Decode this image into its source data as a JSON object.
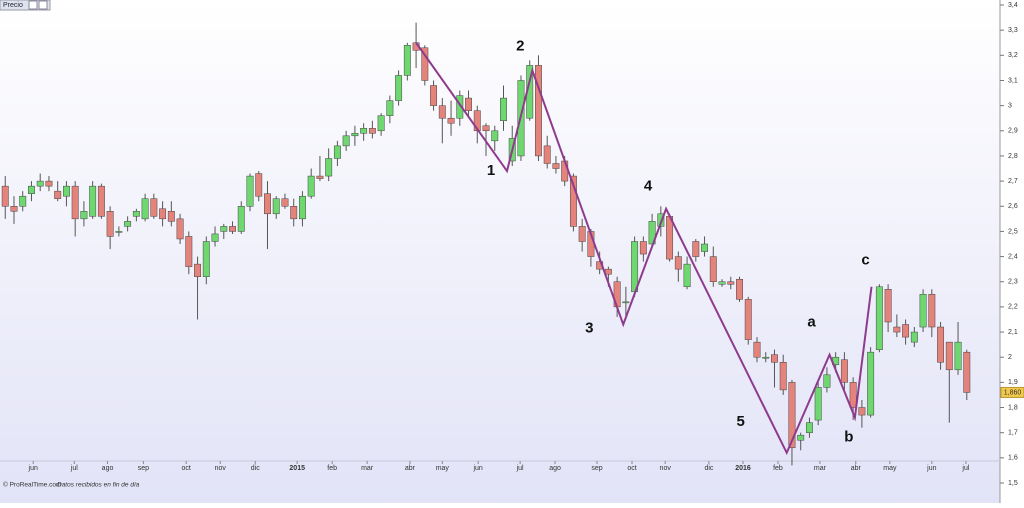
{
  "chart_data": {
    "type": "candlestick",
    "tag": "Precio",
    "footer": {
      "source": "© ProRealTime.com",
      "note": "Datos recibidos en fin de día"
    },
    "colors": {
      "up": "#6fd76f",
      "down": "#e4837b",
      "wick": "#555555",
      "wave": "#8e3b8e"
    },
    "open": [
      2.68,
      2.6,
      2.6,
      2.65,
      2.68,
      2.7,
      2.66,
      2.64,
      2.68,
      2.55,
      2.56,
      2.68,
      2.58,
      2.5,
      2.52,
      2.56,
      2.55,
      2.63,
      2.59,
      2.58,
      2.55,
      2.48,
      2.37,
      2.32,
      2.46,
      2.5,
      2.52,
      2.5,
      2.6,
      2.73,
      2.65,
      2.57,
      2.63,
      2.6,
      2.55,
      2.64,
      2.72,
      2.72,
      2.79,
      2.84,
      2.88,
      2.89,
      2.91,
      2.9,
      2.96,
      3.02,
      3.12,
      3.25,
      3.23,
      3.08,
      3.0,
      2.95,
      2.95,
      3.03,
      2.98,
      2.92,
      2.86,
      2.94,
      2.78,
      2.8,
      2.95,
      3.16,
      2.84,
      2.77,
      2.78,
      2.72,
      2.52,
      2.5,
      2.38,
      2.35,
      2.3,
      2.22,
      2.26,
      2.46,
      2.45,
      2.52,
      2.56,
      2.4,
      2.28,
      2.46,
      2.42,
      2.4,
      2.29,
      2.3,
      2.31,
      2.23,
      2.06,
      2.0,
      2.01,
      1.98,
      1.9,
      1.67,
      1.7,
      1.75,
      1.88,
      1.97,
      1.99,
      1.9,
      1.8,
      1.77,
      2.03,
      2.27,
      2.12,
      2.13,
      2.06,
      2.12,
      2.25,
      2.12,
      2.06,
      1.95,
      2.02
    ],
    "high": [
      2.72,
      2.64,
      2.66,
      2.7,
      2.73,
      2.72,
      2.7,
      2.7,
      2.7,
      2.62,
      2.7,
      2.69,
      2.6,
      2.52,
      2.56,
      2.59,
      2.65,
      2.65,
      2.62,
      2.62,
      2.57,
      2.5,
      2.4,
      2.48,
      2.52,
      2.53,
      2.54,
      2.62,
      2.73,
      2.74,
      2.7,
      2.64,
      2.65,
      2.63,
      2.66,
      2.75,
      2.8,
      2.83,
      2.86,
      2.9,
      2.92,
      2.93,
      2.94,
      2.97,
      3.04,
      3.14,
      3.25,
      3.33,
      3.24,
      3.1,
      3.03,
      3.02,
      3.06,
      3.06,
      3.0,
      2.93,
      2.92,
      3.08,
      2.92,
      3.12,
      3.18,
      3.2,
      2.88,
      2.8,
      2.8,
      2.73,
      2.55,
      2.51,
      2.42,
      2.36,
      2.32,
      2.28,
      2.48,
      2.48,
      2.57,
      2.6,
      2.57,
      2.42,
      2.4,
      2.47,
      2.48,
      2.44,
      2.31,
      2.32,
      2.32,
      2.24,
      2.08,
      2.02,
      2.03,
      2.01,
      1.91,
      1.7,
      1.76,
      1.9,
      1.96,
      2.02,
      2.02,
      1.92,
      1.83,
      2.04,
      2.29,
      2.29,
      2.17,
      2.15,
      2.12,
      2.27,
      2.27,
      2.14,
      2.06,
      2.14,
      2.03
    ],
    "low": [
      2.55,
      2.53,
      2.58,
      2.62,
      2.66,
      2.66,
      2.62,
      2.6,
      2.48,
      2.52,
      2.55,
      2.55,
      2.43,
      2.48,
      2.5,
      2.54,
      2.54,
      2.55,
      2.52,
      2.52,
      2.45,
      2.33,
      2.15,
      2.29,
      2.44,
      2.47,
      2.49,
      2.49,
      2.58,
      2.62,
      2.43,
      2.55,
      2.59,
      2.52,
      2.52,
      2.63,
      2.7,
      2.7,
      2.76,
      2.82,
      2.84,
      2.86,
      2.87,
      2.88,
      2.93,
      3.0,
      3.1,
      3.15,
      3.08,
      2.98,
      2.85,
      2.88,
      2.92,
      2.96,
      2.85,
      2.8,
      2.82,
      2.9,
      2.76,
      2.78,
      2.94,
      2.78,
      2.75,
      2.73,
      2.68,
      2.5,
      2.42,
      2.36,
      2.33,
      2.28,
      2.16,
      2.15,
      2.24,
      2.38,
      2.44,
      2.48,
      2.38,
      2.3,
      2.27,
      2.38,
      2.4,
      2.28,
      2.28,
      2.27,
      2.22,
      2.05,
      1.98,
      1.98,
      1.88,
      1.85,
      1.57,
      1.63,
      1.68,
      1.73,
      1.86,
      1.94,
      1.87,
      1.75,
      1.72,
      1.76,
      2.02,
      2.1,
      2.08,
      2.05,
      2.04,
      2.1,
      2.08,
      1.95,
      1.74,
      1.93,
      1.83
    ],
    "close": [
      2.6,
      2.58,
      2.64,
      2.68,
      2.7,
      2.68,
      2.63,
      2.68,
      2.55,
      2.58,
      2.68,
      2.56,
      2.48,
      2.5,
      2.54,
      2.58,
      2.63,
      2.56,
      2.55,
      2.54,
      2.47,
      2.36,
      2.32,
      2.46,
      2.49,
      2.52,
      2.5,
      2.6,
      2.72,
      2.64,
      2.57,
      2.63,
      2.6,
      2.55,
      2.64,
      2.72,
      2.71,
      2.79,
      2.84,
      2.88,
      2.89,
      2.91,
      2.89,
      2.96,
      3.02,
      3.12,
      3.24,
      3.22,
      3.1,
      3.0,
      2.95,
      2.93,
      3.04,
      2.98,
      2.9,
      2.9,
      2.9,
      3.03,
      2.87,
      3.1,
      3.16,
      2.8,
      2.77,
      2.75,
      2.7,
      2.52,
      2.46,
      2.4,
      2.35,
      2.33,
      2.2,
      2.22,
      2.46,
      2.41,
      2.54,
      2.57,
      2.39,
      2.35,
      2.37,
      2.4,
      2.45,
      2.3,
      2.3,
      2.29,
      2.23,
      2.07,
      2.0,
      2.0,
      1.98,
      1.87,
      1.64,
      1.69,
      1.74,
      1.88,
      1.93,
      2.0,
      1.9,
      1.8,
      1.77,
      2.02,
      2.28,
      2.14,
      2.1,
      2.08,
      2.1,
      2.25,
      2.12,
      1.98,
      1.95,
      2.06,
      1.86
    ],
    "xlim": [
      -0.6,
      113.8
    ],
    "xticks": [
      {
        "value": 3.2,
        "label": "jun"
      },
      {
        "value": 7.9,
        "label": "jul"
      },
      {
        "value": 11.7,
        "label": "ago"
      },
      {
        "value": 15.8,
        "label": "sep"
      },
      {
        "value": 20.7,
        "label": "oct"
      },
      {
        "value": 24.6,
        "label": "nov"
      },
      {
        "value": 28.6,
        "label": "dic"
      },
      {
        "value": 33.4,
        "label": "2015"
      },
      {
        "value": 37.4,
        "label": "feb"
      },
      {
        "value": 41.4,
        "label": "mar"
      },
      {
        "value": 46.3,
        "label": "abr"
      },
      {
        "value": 50.0,
        "label": "may"
      },
      {
        "value": 54.1,
        "label": "jun"
      },
      {
        "value": 58.9,
        "label": "jul"
      },
      {
        "value": 62.9,
        "label": "ago"
      },
      {
        "value": 67.7,
        "label": "sep"
      },
      {
        "value": 71.7,
        "label": "oct"
      },
      {
        "value": 75.5,
        "label": "nov"
      },
      {
        "value": 80.5,
        "label": "dic"
      },
      {
        "value": 84.4,
        "label": "2016"
      },
      {
        "value": 88.4,
        "label": "feb"
      },
      {
        "value": 93.2,
        "label": "mar"
      },
      {
        "value": 97.3,
        "label": "abr"
      },
      {
        "value": 101.2,
        "label": "may"
      },
      {
        "value": 106.0,
        "label": "jun"
      },
      {
        "value": 109.9,
        "label": "jul"
      }
    ],
    "ylim": [
      1.5,
      3.4
    ],
    "yticks": [
      {
        "value": 1.5,
        "label": "1,5"
      },
      {
        "value": 1.6,
        "label": "1,6"
      },
      {
        "value": 1.7,
        "label": "1,7"
      },
      {
        "value": 1.8,
        "label": "1,8"
      },
      {
        "value": 1.9,
        "label": "1,9"
      },
      2,
      {
        "value": 2.1,
        "label": "2,1"
      },
      {
        "value": 2.2,
        "label": "2,2"
      },
      {
        "value": 2.3,
        "label": "2,3"
      },
      {
        "value": 2.4,
        "label": "2,4"
      },
      {
        "value": 2.5,
        "label": "2,5"
      },
      {
        "value": 2.6,
        "label": "2,6"
      },
      {
        "value": 2.7,
        "label": "2,7"
      },
      {
        "value": 2.8,
        "label": "2,8"
      },
      {
        "value": 2.9,
        "label": "2,9"
      },
      3,
      {
        "value": 3.1,
        "label": "3,1"
      },
      {
        "value": 3.2,
        "label": "3,2"
      },
      {
        "value": 3.3,
        "label": "3,3"
      },
      {
        "value": 3.4,
        "label": "3,4"
      }
    ],
    "last_price": {
      "value": 1.86,
      "label": "1,860"
    },
    "wave": {
      "x": [
        47,
        57.4,
        60.3,
        70.7,
        75.6,
        89.4,
        94.3,
        97.2,
        99.1
      ],
      "y": [
        3.25,
        2.74,
        3.14,
        2.13,
        2.59,
        1.62,
        2.01,
        1.76,
        2.28
      ],
      "labels": [
        null,
        "1",
        "2",
        "3",
        "4",
        "5",
        "a",
        "b",
        "c"
      ]
    }
  }
}
